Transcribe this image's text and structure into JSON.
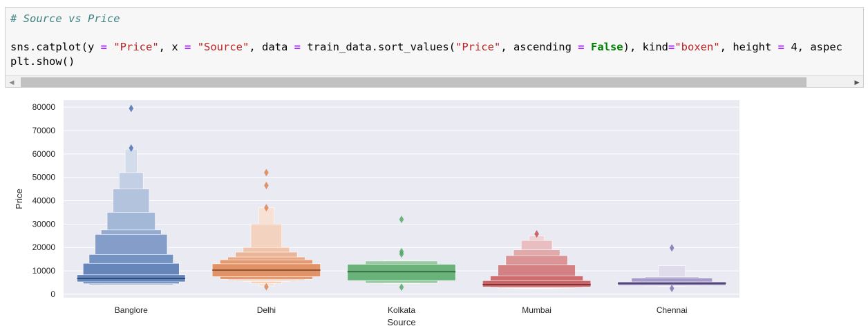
{
  "code_cell": {
    "comment": "# Source vs Price",
    "line1_tokens": [
      {
        "t": "sns.catplot(y ",
        "c": ""
      },
      {
        "t": "=",
        "c": "op"
      },
      {
        "t": " ",
        "c": ""
      },
      {
        "t": "\"Price\"",
        "c": "str"
      },
      {
        "t": ", x ",
        "c": ""
      },
      {
        "t": "=",
        "c": "op"
      },
      {
        "t": " ",
        "c": ""
      },
      {
        "t": "\"Source\"",
        "c": "str"
      },
      {
        "t": ", data ",
        "c": ""
      },
      {
        "t": "=",
        "c": "op"
      },
      {
        "t": " train_data.sort_values(",
        "c": ""
      },
      {
        "t": "\"Price\"",
        "c": "str"
      },
      {
        "t": ", ascending ",
        "c": ""
      },
      {
        "t": "=",
        "c": "op"
      },
      {
        "t": " ",
        "c": ""
      },
      {
        "t": "False",
        "c": "kw"
      },
      {
        "t": "), kind",
        "c": ""
      },
      {
        "t": "=",
        "c": "op"
      },
      {
        "t": "\"boxen\"",
        "c": "str"
      },
      {
        "t": ", height ",
        "c": ""
      },
      {
        "t": "=",
        "c": "op"
      },
      {
        "t": " 4, aspec",
        "c": ""
      }
    ],
    "line2": "plt.show()"
  },
  "scrollbar": {
    "left_arrow": "◀",
    "right_arrow": "▶"
  },
  "chart_data": {
    "type": "boxen",
    "xlabel": "Source",
    "ylabel": "Price",
    "ylim": [
      -1500,
      83000
    ],
    "yticks": [
      0,
      10000,
      20000,
      30000,
      40000,
      50000,
      60000,
      70000,
      80000
    ],
    "grid": true,
    "background": "#eaeaf2",
    "categories": [
      {
        "name": "Banglore",
        "color": "#4c72b0",
        "median": 6700,
        "levels": [
          {
            "lo": 5300,
            "hi": 8300
          },
          {
            "lo": 4500,
            "hi": 13200
          },
          {
            "lo": 4100,
            "hi": 17000
          },
          {
            "lo": 4000,
            "hi": 25600
          },
          {
            "lo": 3900,
            "hi": 27500
          },
          {
            "lo": 3900,
            "hi": 35000
          },
          {
            "lo": 3900,
            "hi": 45000
          },
          {
            "lo": 3900,
            "hi": 52000
          },
          {
            "lo": 3900,
            "hi": 62000
          }
        ],
        "outliers": [
          79500,
          62500
        ]
      },
      {
        "name": "Delhi",
        "color": "#dd8452",
        "median": 10300,
        "levels": [
          {
            "lo": 7500,
            "hi": 13000
          },
          {
            "lo": 6400,
            "hi": 14700
          },
          {
            "lo": 6000,
            "hi": 15900
          },
          {
            "lo": 5700,
            "hi": 18000
          },
          {
            "lo": 5500,
            "hi": 20000
          },
          {
            "lo": 4500,
            "hi": 30000
          },
          {
            "lo": 3500,
            "hi": 37000
          }
        ],
        "outliers": [
          52000,
          46500,
          37000,
          3200
        ]
      },
      {
        "name": "Kolkata",
        "color": "#55a868",
        "median": 9600,
        "levels": [
          {
            "lo": 5800,
            "hi": 12800
          },
          {
            "lo": 4700,
            "hi": 14200
          },
          {
            "lo": 4500,
            "hi": 14500
          }
        ],
        "outliers": [
          32000,
          18200,
          17200,
          3000
        ]
      },
      {
        "name": "Mumbai",
        "color": "#c44e52",
        "median": 4100,
        "levels": [
          {
            "lo": 3100,
            "hi": 5800
          },
          {
            "lo": 2800,
            "hi": 7800
          },
          {
            "lo": 2600,
            "hi": 12500
          },
          {
            "lo": 2500,
            "hi": 16500
          },
          {
            "lo": 2400,
            "hi": 19000
          },
          {
            "lo": 2300,
            "hi": 23000
          },
          {
            "lo": 2300,
            "hi": 25000
          }
        ],
        "outliers": [
          25800
        ]
      },
      {
        "name": "Chennai",
        "color": "#8172b3",
        "median": 4700,
        "levels": [
          {
            "lo": 3700,
            "hi": 5300
          },
          {
            "lo": 3600,
            "hi": 6900
          },
          {
            "lo": 3500,
            "hi": 7500
          },
          {
            "lo": 3400,
            "hi": 12200
          }
        ],
        "outliers": [
          19800,
          2500
        ]
      }
    ]
  }
}
